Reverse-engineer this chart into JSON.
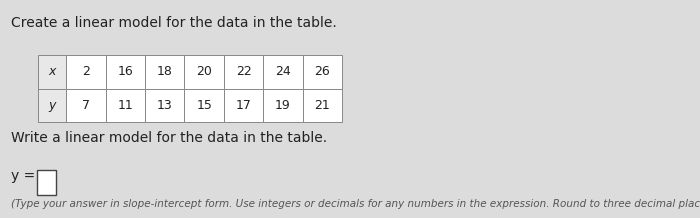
{
  "title": "Create a linear model for the data in the table.",
  "table_x": [
    "x",
    "2",
    "16",
    "18",
    "20",
    "22",
    "24",
    "26"
  ],
  "table_y": [
    "y",
    "7",
    "11",
    "13",
    "15",
    "17",
    "19",
    "21"
  ],
  "write_prompt": "Write a linear model for the data in the table.",
  "y_label": "y =",
  "answer_box": true,
  "footnote": "(Type your answer in slope-intercept form. Use integers or decimals for any numbers in the expression. Round to three decimal places as needed.)",
  "bg_color": "#dcdcdc",
  "table_bg": "#ffffff",
  "header_bg": "#e8e8e8",
  "text_color": "#222222",
  "footnote_color": "#555555",
  "title_fontsize": 10,
  "table_fontsize": 9,
  "body_fontsize": 10,
  "footnote_fontsize": 7.5
}
